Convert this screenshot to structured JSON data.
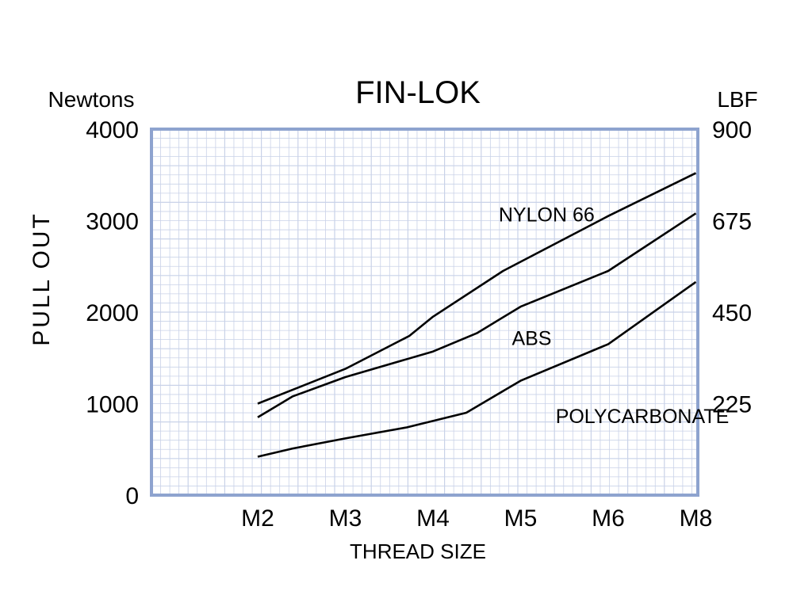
{
  "chart_data": {
    "type": "line",
    "title": "FIN-LOK",
    "xlabel": "THREAD SIZE",
    "ylabel": "PULL OUT",
    "y_left_unit": "Newtons",
    "y_right_unit": "LBF",
    "categories": [
      "M2",
      "M3",
      "M4",
      "M5",
      "M6",
      "M8"
    ],
    "ylim": [
      0,
      4000
    ],
    "y_left_ticks": [
      "0",
      "1000",
      "2000",
      "3000",
      "4000"
    ],
    "y_right_ticks": [
      "225",
      "450",
      "675",
      "900"
    ],
    "y_right_tick_values_newtons": [
      1000,
      2000,
      3000,
      4000
    ],
    "grid": true,
    "colors": {
      "frame": "#8ea3cf",
      "grid": "#c9d2e8",
      "line": "#000000"
    },
    "series": [
      {
        "name": "NYLON 66",
        "points": [
          [
            0,
            1000
          ],
          [
            1,
            1380
          ],
          [
            1.73,
            1740
          ],
          [
            2,
            1950
          ],
          [
            2.8,
            2450
          ],
          [
            4,
            3050
          ],
          [
            5,
            3520
          ]
        ]
      },
      {
        "name": "ABS",
        "points": [
          [
            0,
            850
          ],
          [
            0.4,
            1080
          ],
          [
            1,
            1290
          ],
          [
            2,
            1570
          ],
          [
            2.5,
            1770
          ],
          [
            3,
            2060
          ],
          [
            4,
            2450
          ],
          [
            5,
            3080
          ]
        ]
      },
      {
        "name": "POLYCARBONATE",
        "points": [
          [
            0,
            420
          ],
          [
            0.4,
            510
          ],
          [
            1,
            620
          ],
          [
            1.7,
            740
          ],
          [
            2.38,
            900
          ],
          [
            3,
            1250
          ],
          [
            4,
            1650
          ],
          [
            5,
            2330
          ]
        ]
      }
    ],
    "series_label_anchors": [
      [
        2.75,
        2990
      ],
      [
        2.9,
        1640
      ],
      [
        3.4,
        790
      ]
    ]
  }
}
